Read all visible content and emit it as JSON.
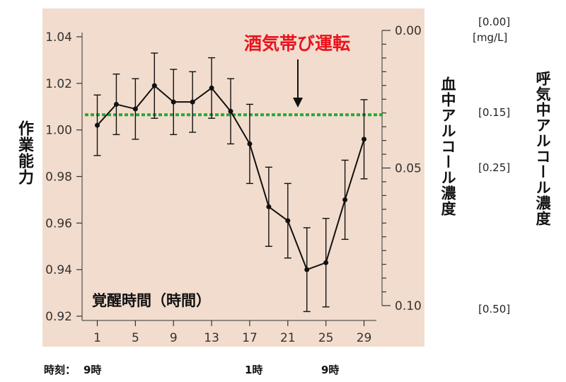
{
  "chart_data": {
    "type": "line",
    "ylabel": "作業能力",
    "ylim": [
      0.92,
      1.04
    ],
    "yticks": [
      "1.04",
      "1.02",
      "1.00",
      "0.98",
      "0.96",
      "0.94",
      "0.92"
    ],
    "xlim": [
      -0.3,
      30
    ],
    "xticks": [
      "1",
      "5",
      "9",
      "13",
      "17",
      "21",
      "25",
      "29"
    ],
    "x": [
      1,
      3,
      5,
      7,
      9,
      11,
      13,
      15,
      17,
      19,
      21,
      23,
      25,
      27,
      29
    ],
    "values": [
      1.002,
      1.011,
      1.009,
      1.019,
      1.012,
      1.012,
      1.018,
      1.008,
      0.994,
      0.967,
      0.961,
      0.94,
      0.943,
      0.97,
      0.996
    ],
    "errors": [
      0.013,
      0.013,
      0.013,
      0.014,
      0.014,
      0.013,
      0.013,
      0.014,
      0.017,
      0.017,
      0.016,
      0.018,
      0.019,
      0.017,
      0.017
    ],
    "inner_label": "覚醒時間（時間）",
    "annotation": "酒気帯び運転",
    "threshold": {
      "value": 1.0065,
      "color": "#22aa33"
    },
    "right_axis": {
      "label": "血中アルコール濃度",
      "ticks": [
        "0.00",
        "0.05",
        "0.10"
      ],
      "values": [
        0.0,
        0.05,
        0.1
      ]
    },
    "outer_axis": {
      "label": "呼気中アルコール濃度",
      "unit": "[mg/L]",
      "ticks": [
        "[0.00]",
        "[0.15]",
        "[0.25]",
        "[0.50]"
      ]
    },
    "time_of_day": {
      "prefix": "時刻：",
      "labels": [
        "9時",
        "1時",
        "9時"
      ]
    },
    "colors": {
      "plot_bg": "#f2dccd",
      "line": "#111111",
      "annotation": "#e8141e"
    }
  }
}
